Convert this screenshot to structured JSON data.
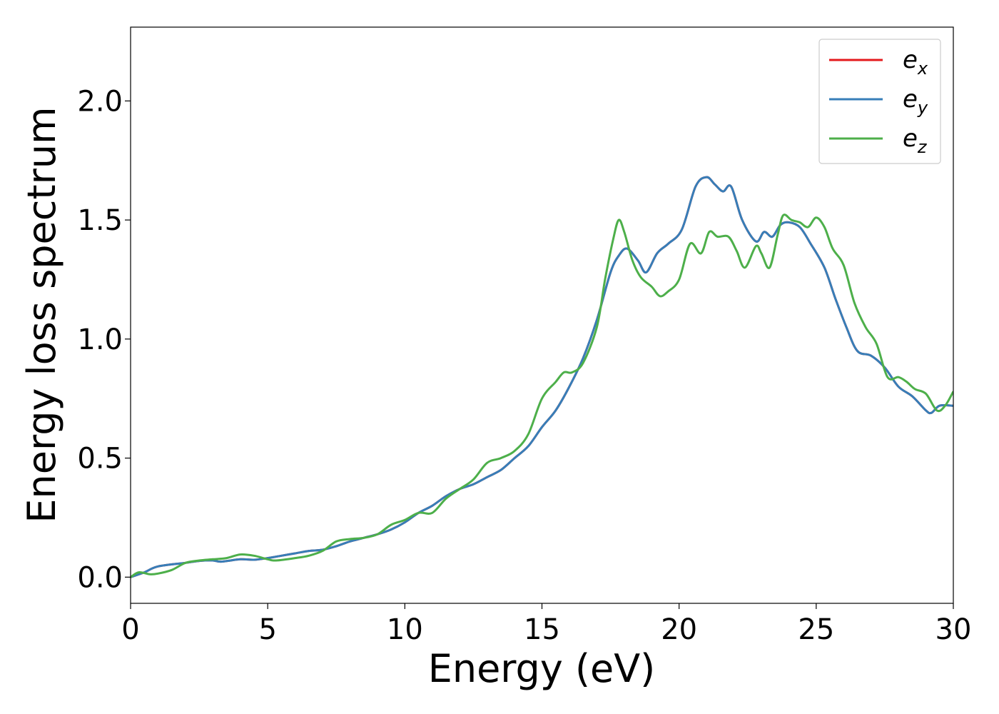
{
  "chart_data": {
    "type": "line",
    "title": "",
    "xlabel": "Energy (eV)",
    "ylabel": "Energy loss spectrum",
    "xlim": [
      0,
      30
    ],
    "ylim": [
      -0.11,
      2.31
    ],
    "xticks": [
      0,
      5,
      10,
      15,
      20,
      25,
      30
    ],
    "xtick_labels": [
      "0",
      "5",
      "10",
      "15",
      "20",
      "25",
      "30"
    ],
    "yticks": [
      0.0,
      0.5,
      1.0,
      1.5,
      2.0
    ],
    "ytick_labels": [
      "0.0",
      "0.5",
      "1.0",
      "1.5",
      "2.0"
    ],
    "grid": false,
    "legend_position": "top-right",
    "legend": [
      {
        "base": "e",
        "sub": "x",
        "color": "#e41a1c"
      },
      {
        "base": "e",
        "sub": "y",
        "color": "#377eb8"
      },
      {
        "base": "e",
        "sub": "z",
        "color": "#4daf4a"
      }
    ],
    "series": [
      {
        "name": "e_x",
        "color": "#e41a1c",
        "x": [
          0,
          0.5,
          1,
          2,
          2.5,
          3,
          3.3,
          4,
          4.5,
          5,
          5.5,
          6,
          6.5,
          7,
          7.5,
          8,
          8.5,
          9,
          9.5,
          10,
          10.5,
          11,
          11.5,
          12,
          12.5,
          13,
          13.5,
          14,
          14.5,
          15,
          15.5,
          16,
          16.5,
          17,
          17.5,
          17.8,
          18.1,
          18.5,
          18.8,
          19.2,
          19.6,
          20.1,
          20.6,
          21,
          21.3,
          21.6,
          21.9,
          22.3,
          22.8,
          23.1,
          23.4,
          23.7,
          24,
          24.4,
          24.8,
          25.3,
          25.7,
          26.1,
          26.5,
          27,
          27.5,
          28,
          28.5,
          29,
          29.2,
          29.5,
          30
        ],
        "y": [
          0,
          0.02,
          0.045,
          0.06,
          0.068,
          0.07,
          0.065,
          0.075,
          0.073,
          0.08,
          0.09,
          0.1,
          0.11,
          0.115,
          0.13,
          0.15,
          0.165,
          0.18,
          0.2,
          0.23,
          0.27,
          0.3,
          0.34,
          0.37,
          0.39,
          0.42,
          0.45,
          0.5,
          0.55,
          0.63,
          0.7,
          0.8,
          0.92,
          1.08,
          1.28,
          1.35,
          1.38,
          1.33,
          1.28,
          1.36,
          1.4,
          1.46,
          1.64,
          1.68,
          1.65,
          1.62,
          1.64,
          1.5,
          1.41,
          1.45,
          1.43,
          1.48,
          1.49,
          1.47,
          1.4,
          1.3,
          1.17,
          1.05,
          0.95,
          0.93,
          0.88,
          0.8,
          0.76,
          0.7,
          0.69,
          0.72,
          0.72
        ]
      },
      {
        "name": "e_y",
        "color": "#377eb8",
        "x": [
          0,
          0.5,
          1,
          2,
          2.5,
          3,
          3.3,
          4,
          4.5,
          5,
          5.5,
          6,
          6.5,
          7,
          7.5,
          8,
          8.5,
          9,
          9.5,
          10,
          10.5,
          11,
          11.5,
          12,
          12.5,
          13,
          13.5,
          14,
          14.5,
          15,
          15.5,
          16,
          16.5,
          17,
          17.5,
          17.8,
          18.1,
          18.5,
          18.8,
          19.2,
          19.6,
          20.1,
          20.6,
          21,
          21.3,
          21.6,
          21.9,
          22.3,
          22.8,
          23.1,
          23.4,
          23.7,
          24,
          24.4,
          24.8,
          25.3,
          25.7,
          26.1,
          26.5,
          27,
          27.5,
          28,
          28.5,
          29,
          29.2,
          29.5,
          30
        ],
        "y": [
          0,
          0.02,
          0.045,
          0.06,
          0.068,
          0.07,
          0.065,
          0.075,
          0.073,
          0.08,
          0.09,
          0.1,
          0.11,
          0.115,
          0.13,
          0.15,
          0.165,
          0.18,
          0.2,
          0.23,
          0.27,
          0.3,
          0.34,
          0.37,
          0.39,
          0.42,
          0.45,
          0.5,
          0.55,
          0.63,
          0.7,
          0.8,
          0.92,
          1.08,
          1.28,
          1.35,
          1.38,
          1.33,
          1.28,
          1.36,
          1.4,
          1.46,
          1.64,
          1.68,
          1.65,
          1.62,
          1.64,
          1.5,
          1.41,
          1.45,
          1.43,
          1.48,
          1.49,
          1.47,
          1.4,
          1.3,
          1.17,
          1.05,
          0.95,
          0.93,
          0.88,
          0.8,
          0.76,
          0.7,
          0.69,
          0.72,
          0.72
        ]
      },
      {
        "name": "e_z",
        "color": "#4daf4a",
        "x": [
          0,
          0.3,
          0.7,
          1,
          1.5,
          2,
          2.5,
          3,
          3.5,
          4,
          4.5,
          5,
          5.3,
          6,
          6.5,
          7,
          7.5,
          8,
          8.5,
          9,
          9.5,
          10,
          10.5,
          11,
          11.5,
          12,
          12.5,
          13,
          13.5,
          14,
          14.5,
          15,
          15.5,
          15.8,
          16.1,
          16.5,
          17,
          17.3,
          17.6,
          17.8,
          18,
          18.3,
          18.6,
          19,
          19.3,
          19.6,
          20,
          20.4,
          20.8,
          21.1,
          21.4,
          21.8,
          22.1,
          22.4,
          22.8,
          23,
          23.3,
          23.6,
          23.8,
          24.1,
          24.4,
          24.7,
          25,
          25.3,
          25.6,
          26,
          26.4,
          26.8,
          27.2,
          27.6,
          28,
          28.3,
          28.6,
          29,
          29.4,
          29.7,
          30
        ],
        "y": [
          0,
          0.02,
          0.012,
          0.015,
          0.03,
          0.06,
          0.07,
          0.075,
          0.08,
          0.095,
          0.09,
          0.075,
          0.07,
          0.08,
          0.09,
          0.11,
          0.15,
          0.16,
          0.165,
          0.18,
          0.22,
          0.24,
          0.27,
          0.27,
          0.33,
          0.37,
          0.41,
          0.48,
          0.5,
          0.53,
          0.6,
          0.75,
          0.82,
          0.86,
          0.86,
          0.9,
          1.05,
          1.25,
          1.42,
          1.5,
          1.45,
          1.33,
          1.26,
          1.22,
          1.18,
          1.2,
          1.25,
          1.4,
          1.36,
          1.45,
          1.43,
          1.43,
          1.37,
          1.3,
          1.39,
          1.36,
          1.3,
          1.44,
          1.52,
          1.5,
          1.49,
          1.47,
          1.51,
          1.47,
          1.38,
          1.31,
          1.15,
          1.05,
          0.98,
          0.84,
          0.84,
          0.82,
          0.79,
          0.77,
          0.7,
          0.72,
          0.78
        ]
      }
    ]
  }
}
